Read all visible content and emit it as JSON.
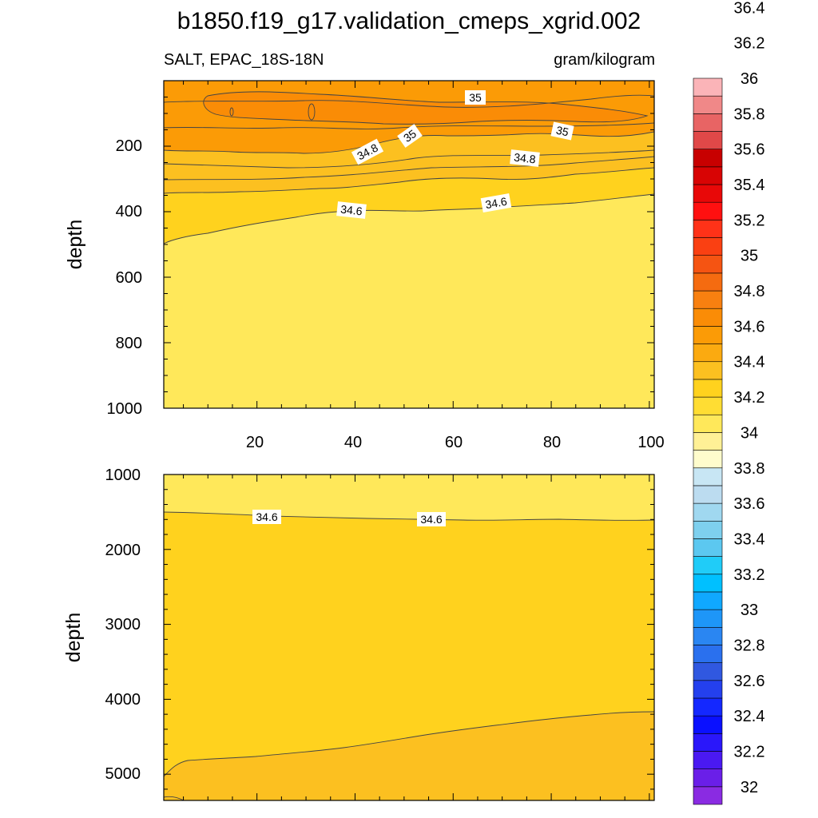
{
  "chart_data": {
    "title": "b1850.f19_g17.validation_cmeps_xgrid.002",
    "panels": [
      {
        "id": "upper",
        "type": "contour",
        "variable": "SALT, EPAC_18S-18N",
        "units": "gram/kilogram",
        "ylabel": "depth",
        "xlim": [
          1,
          101
        ],
        "ylim": [
          0,
          1000
        ],
        "y_reversed": true,
        "xticks": [
          "20",
          "40",
          "60",
          "80",
          "100"
        ],
        "yticks": [
          "200",
          "400",
          "600",
          "800",
          "1000"
        ],
        "contour_labels": [
          {
            "text": "35",
            "x": 63,
            "y": 48
          },
          {
            "text": "35",
            "x": 50,
            "y": 165
          },
          {
            "text": "35",
            "x": 81,
            "y": 150
          },
          {
            "text": "34.8",
            "x": 37,
            "y": 220
          },
          {
            "text": "34.8",
            "x": 73,
            "y": 225
          },
          {
            "text": "34.6",
            "x": 36,
            "y": 398
          },
          {
            "text": "34.6",
            "x": 68,
            "y": 390
          }
        ]
      },
      {
        "id": "lower",
        "type": "contour",
        "variable": "",
        "units": "",
        "ylabel": "depth",
        "xlim": [
          1,
          101
        ],
        "ylim": [
          1000,
          5350
        ],
        "y_reversed": true,
        "xticks": [],
        "yticks": [
          "1000",
          "2000",
          "3000",
          "4000",
          "5000"
        ],
        "contour_labels": [
          {
            "text": "34.6",
            "x": 23,
            "y": 1570
          },
          {
            "text": "34.6",
            "x": 55,
            "y": 1590
          }
        ]
      }
    ],
    "colorbar": {
      "levels": [
        "32",
        "32.2",
        "32.4",
        "32.6",
        "32.8",
        "33",
        "33.2",
        "33.4",
        "33.6",
        "33.8",
        "34",
        "34.2",
        "34.4",
        "34.6",
        "34.8",
        "35",
        "35.2",
        "35.4",
        "35.6",
        "35.8",
        "36",
        "36.2",
        "36.4"
      ],
      "colors": [
        "#8a2be2",
        "#6a1fe8",
        "#4a19f2",
        "#2a17fa",
        "#0a10ff",
        "#1428ff",
        "#2440ee",
        "#3058e0",
        "#2a70ee",
        "#2a86f2",
        "#1e96f8",
        "#10a8ff",
        "#00c0ff",
        "#20ccf8",
        "#5cc8f0",
        "#7ed0ee",
        "#a0d8f0",
        "#bcdcf0",
        "#c8e6f4",
        "#fffccc",
        "#fff096",
        "#ffe85a",
        "#ffdd33",
        "#ffd21e",
        "#fcc020",
        "#fbaa10",
        "#fb9b06",
        "#fa8c06",
        "#f88010",
        "#f56b10",
        "#f55412",
        "#fa4012",
        "#ff3218",
        "#ff1010",
        "#e80808",
        "#d80404",
        "#c80000",
        "#e04848",
        "#e86464",
        "#f08888",
        "#fbb4b8"
      ]
    }
  }
}
